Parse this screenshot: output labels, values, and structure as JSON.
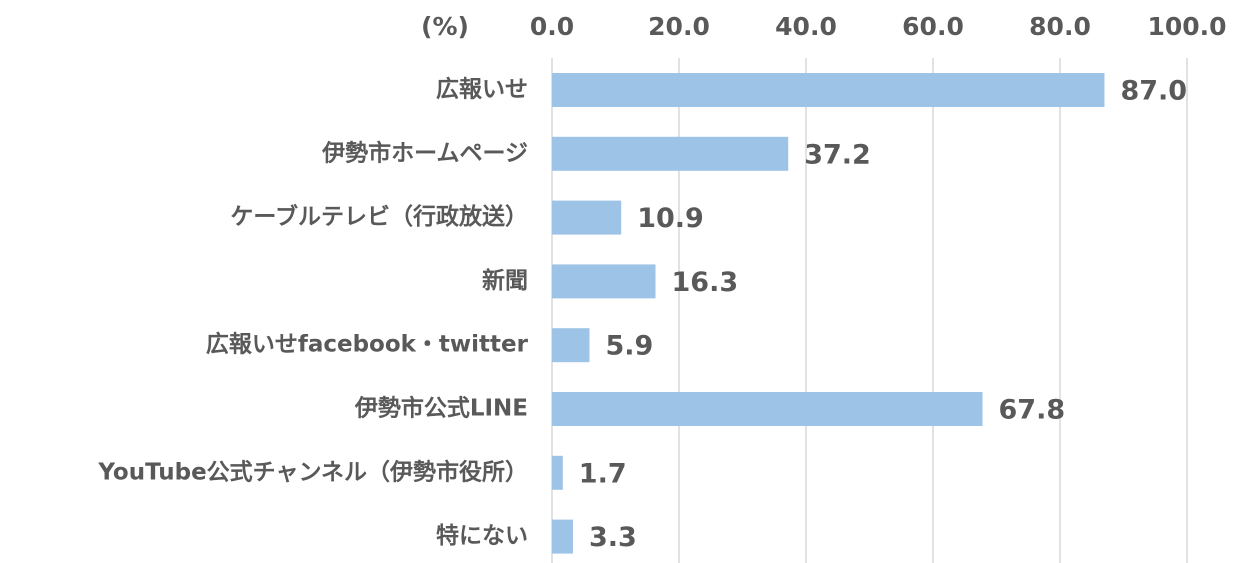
{
  "chart_data": {
    "type": "bar",
    "orientation": "horizontal",
    "axis_label": "(%)",
    "categories": [
      "広報いせ",
      "伊勢市ホームページ",
      "ケーブルテレビ（行政放送）",
      "新聞",
      "広報いせfacebook・twitter",
      "伊勢市公式LINE",
      "YouTube公式チャンネル（伊勢市役所）",
      "特にない"
    ],
    "values": [
      87.0,
      37.2,
      10.9,
      16.3,
      5.9,
      67.8,
      1.7,
      3.3
    ],
    "value_labels": [
      "87.0",
      "37.2",
      "10.9",
      "16.3",
      "5.9",
      "67.8",
      "1.7",
      "3.3"
    ],
    "color": "#9dc3e6",
    "xlim": [
      0,
      100
    ],
    "xticks": [
      {
        "value": 0,
        "label": "0.0"
      },
      {
        "value": 20,
        "label": "20.0"
      },
      {
        "value": 40,
        "label": "40.0"
      },
      {
        "value": 60,
        "label": "60.0"
      },
      {
        "value": 80,
        "label": "80.0"
      },
      {
        "value": 100,
        "label": "100.0"
      }
    ],
    "grid": true
  }
}
